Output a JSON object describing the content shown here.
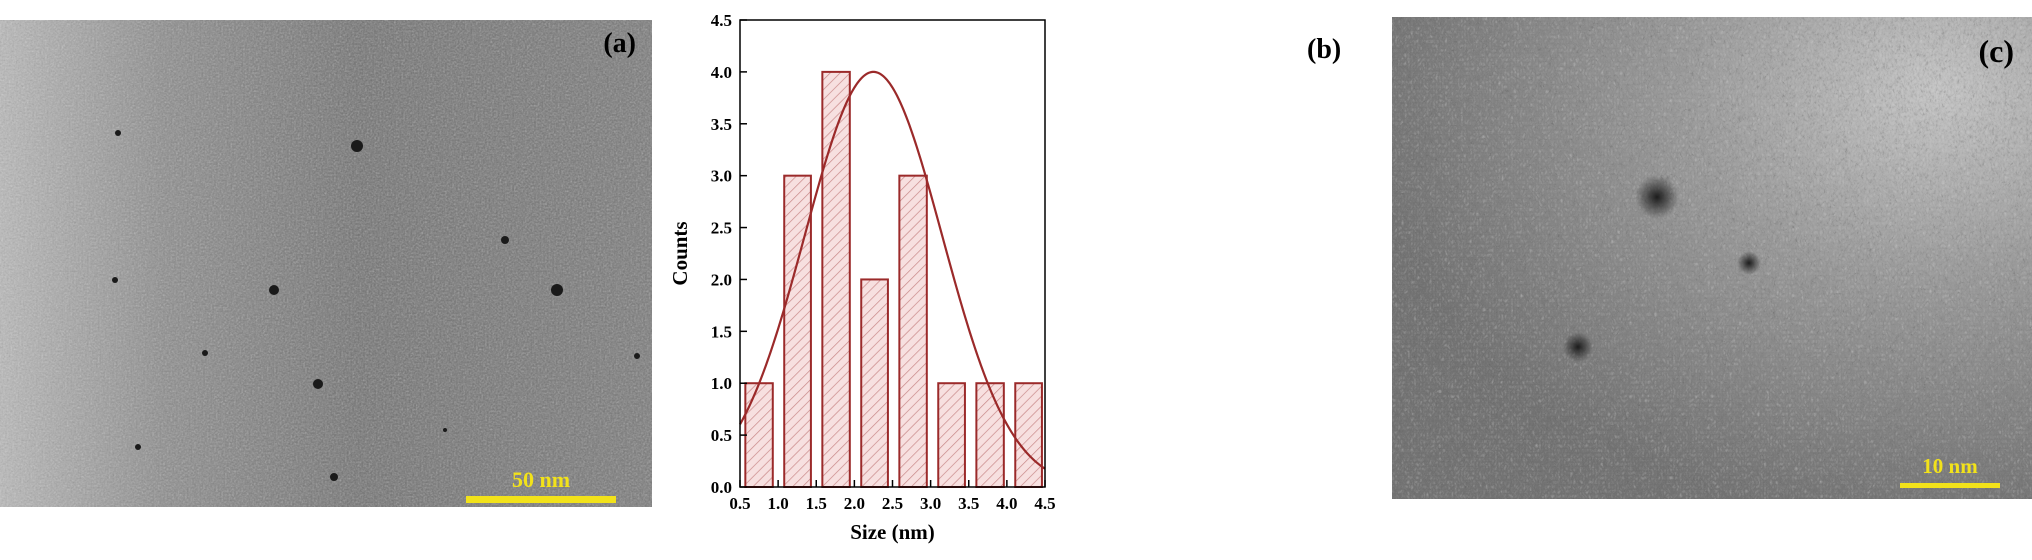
{
  "panels": {
    "a": {
      "label": "(a)",
      "scale_label": "50 nm"
    },
    "b": {
      "label": "(b)"
    },
    "c": {
      "label": "(c)",
      "scale_label": "10 nm"
    }
  },
  "colors": {
    "bar_stroke": "#9b2a2a",
    "bar_fill": "#f3d6d6",
    "curve": "#9b2a2a",
    "scale_bar": "#f2e21a"
  },
  "chart_data": {
    "type": "bar",
    "xlabel": "Size (nm)",
    "ylabel": "Counts",
    "xlim": [
      0.5,
      4.5
    ],
    "ylim": [
      0.0,
      4.5
    ],
    "xticks": [
      "0.5",
      "1.0",
      "1.5",
      "2.0",
      "2.5",
      "3.0",
      "3.5",
      "4.0",
      "4.5"
    ],
    "yticks": [
      "0.0",
      "0.5",
      "1.0",
      "1.5",
      "2.0",
      "2.5",
      "3.0",
      "3.5",
      "4.0",
      "4.5"
    ],
    "bins": [
      {
        "left": 0.57,
        "right": 0.93,
        "count": 1
      },
      {
        "left": 1.08,
        "right": 1.43,
        "count": 3
      },
      {
        "left": 1.58,
        "right": 1.94,
        "count": 4
      },
      {
        "left": 2.09,
        "right": 2.44,
        "count": 2
      },
      {
        "left": 2.59,
        "right": 2.95,
        "count": 3
      },
      {
        "left": 3.1,
        "right": 3.45,
        "count": 1
      },
      {
        "left": 3.6,
        "right": 3.96,
        "count": 1
      },
      {
        "left": 4.11,
        "right": 4.46,
        "count": 1
      }
    ],
    "fit": {
      "type": "gaussian",
      "center": 2.25,
      "amplitude": 4.0,
      "sigma": 0.9
    },
    "grid": false,
    "legend": "none",
    "bar_pattern": "diagonal-hatch"
  }
}
